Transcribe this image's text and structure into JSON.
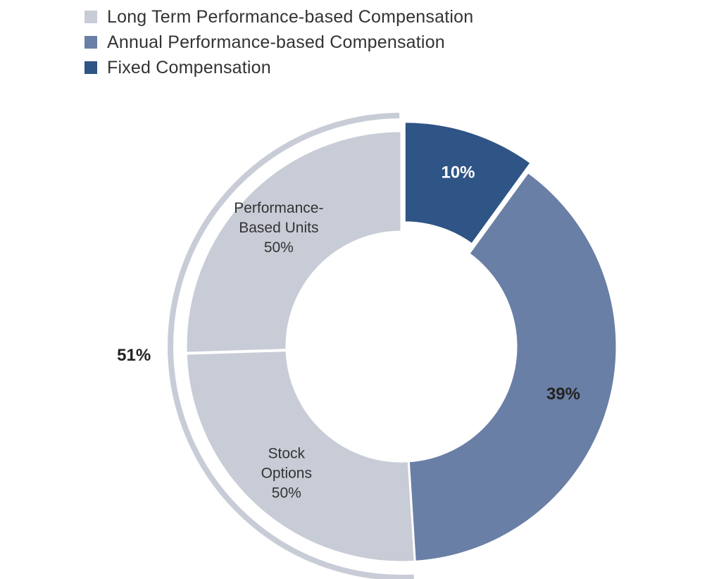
{
  "chart_data": {
    "type": "pie",
    "legend": {
      "placement": "top-left",
      "entries": [
        {
          "label": "Long Term Performance-based Compensation",
          "color": "#c8ccd6"
        },
        {
          "label": "Annual Performance-based Compensation",
          "color": "#6a7fa5"
        },
        {
          "label": "Fixed Compensation",
          "color": "#2f5486"
        }
      ]
    },
    "slices": [
      {
        "name": "Fixed Compensation",
        "value": 10,
        "label": "10%",
        "color": "#2f5486"
      },
      {
        "name": "Annual Performance-based Compensation",
        "value": 39,
        "label": "39%",
        "color": "#6a7fa5"
      },
      {
        "name": "Long Term Performance-based Compensation",
        "value": 51,
        "label": "51%",
        "color": "#c8ccd6"
      }
    ],
    "sub_slices": [
      {
        "parent": "Long Term Performance-based Compensation",
        "lines": [
          "Stock",
          "Options",
          "50%"
        ],
        "value": 50
      },
      {
        "parent": "Long Term Performance-based Compensation",
        "lines": [
          "Performance-",
          "Based Units",
          "50%"
        ],
        "value": 50
      }
    ]
  }
}
